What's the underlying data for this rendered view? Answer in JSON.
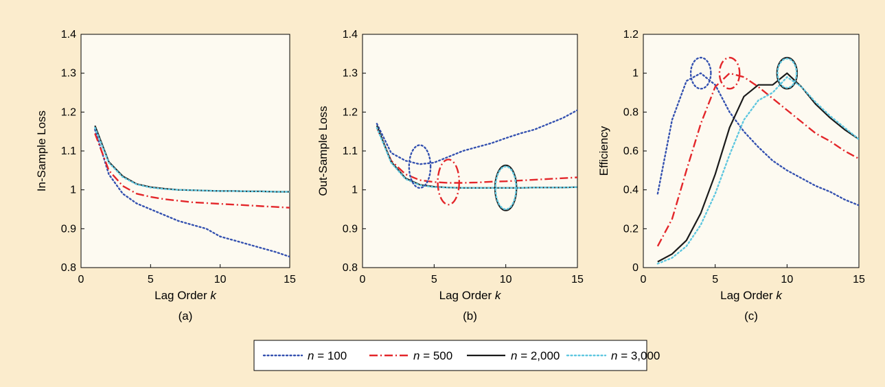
{
  "legend": {
    "placement": "bottom-center",
    "entries": [
      {
        "pre": "n",
        "post": " = 100"
      },
      {
        "pre": "n",
        "post": " = 500"
      },
      {
        "pre": "n",
        "post": " = 2,000"
      },
      {
        "pre": "n",
        "post": " = 3,000"
      }
    ]
  },
  "colors": {
    "background": "#fbeccd",
    "plot_area": "#fdfaf1",
    "n100": "#3451b0",
    "n500": "#e3262a",
    "n2000": "#1a1a1a",
    "n3000": "#5fc7e0"
  },
  "chart_data": [
    {
      "type": "line",
      "panel_label": "(a)",
      "xlabel": "Lag Order",
      "xlabel_var": "k",
      "ylabel": "In-Sample Loss",
      "xlim": [
        0,
        15
      ],
      "ylim": [
        0.8,
        1.4
      ],
      "xticks": [
        0,
        5,
        10,
        15
      ],
      "yticks": [
        0.8,
        0.9,
        1,
        1.1,
        1.2,
        1.3,
        1.4
      ],
      "x": [
        1,
        2,
        3,
        4,
        5,
        6,
        7,
        8,
        9,
        10,
        11,
        12,
        13,
        14,
        15
      ],
      "series": [
        {
          "key": "n100",
          "style": "dotted",
          "values": [
            1.155,
            1.04,
            0.99,
            0.965,
            0.95,
            0.935,
            0.92,
            0.91,
            0.9,
            0.88,
            0.87,
            0.86,
            0.85,
            0.84,
            0.828
          ]
        },
        {
          "key": "n500",
          "style": "dashdot",
          "values": [
            1.145,
            1.05,
            1.01,
            0.99,
            0.982,
            0.976,
            0.972,
            0.968,
            0.966,
            0.964,
            0.962,
            0.96,
            0.958,
            0.956,
            0.954
          ]
        },
        {
          "key": "n2000",
          "style": "solid",
          "values": [
            1.165,
            1.072,
            1.035,
            1.015,
            1.007,
            1.003,
            1.0,
            0.999,
            0.998,
            0.997,
            0.997,
            0.996,
            0.996,
            0.995,
            0.995
          ]
        },
        {
          "key": "n3000",
          "style": "dotted-light",
          "values": [
            1.16,
            1.07,
            1.033,
            1.014,
            1.006,
            1.002,
            1.0,
            0.999,
            0.998,
            0.997,
            0.997,
            0.996,
            0.996,
            0.995,
            0.995
          ]
        }
      ],
      "annotations": []
    },
    {
      "type": "line",
      "panel_label": "(b)",
      "xlabel": "Lag Order",
      "xlabel_var": "k",
      "ylabel": "Out-Sample Loss",
      "xlim": [
        0,
        15
      ],
      "ylim": [
        0.8,
        1.4
      ],
      "xticks": [
        0,
        5,
        10,
        15
      ],
      "yticks": [
        0.8,
        0.9,
        1,
        1.1,
        1.2,
        1.3,
        1.4
      ],
      "x": [
        1,
        2,
        3,
        4,
        5,
        6,
        7,
        8,
        9,
        10,
        11,
        12,
        13,
        14,
        15
      ],
      "series": [
        {
          "key": "n100",
          "style": "dotted",
          "values": [
            1.17,
            1.095,
            1.075,
            1.066,
            1.07,
            1.085,
            1.1,
            1.11,
            1.12,
            1.133,
            1.145,
            1.155,
            1.17,
            1.185,
            1.205
          ]
        },
        {
          "key": "n500",
          "style": "dashdot",
          "values": [
            1.16,
            1.075,
            1.04,
            1.025,
            1.02,
            1.018,
            1.018,
            1.019,
            1.021,
            1.022,
            1.024,
            1.026,
            1.028,
            1.03,
            1.032
          ]
        },
        {
          "key": "n2000",
          "style": "solid",
          "values": [
            1.165,
            1.072,
            1.03,
            1.013,
            1.008,
            1.006,
            1.005,
            1.005,
            1.005,
            1.005,
            1.005,
            1.006,
            1.006,
            1.006,
            1.007
          ]
        },
        {
          "key": "n3000",
          "style": "dotted-light",
          "values": [
            1.16,
            1.07,
            1.028,
            1.012,
            1.007,
            1.006,
            1.005,
            1.005,
            1.005,
            1.005,
            1.005,
            1.006,
            1.006,
            1.006,
            1.007
          ]
        }
      ],
      "annotations": [
        {
          "key": "n100",
          "style": "dotted",
          "cx": 4,
          "cy": 1.06,
          "rx": 0.75,
          "ry": 0.055
        },
        {
          "key": "n500",
          "style": "dashdot",
          "cx": 6,
          "cy": 1.02,
          "rx": 0.75,
          "ry": 0.058
        },
        {
          "key": "n2000",
          "style": "solid",
          "cx": 10,
          "cy": 1.005,
          "rx": 0.75,
          "ry": 0.058
        },
        {
          "key": "n3000",
          "style": "dotted-light",
          "cx": 10,
          "cy": 1.005,
          "rx": 0.72,
          "ry": 0.055
        }
      ]
    },
    {
      "type": "line",
      "panel_label": "(c)",
      "xlabel": "Lag Order",
      "xlabel_var": "k",
      "ylabel": "Efficiency",
      "xlim": [
        0,
        15
      ],
      "ylim": [
        0,
        1.2
      ],
      "xticks": [
        0,
        5,
        10,
        15
      ],
      "yticks": [
        0,
        0.2,
        0.4,
        0.6,
        0.8,
        1,
        1.2
      ],
      "x": [
        1,
        2,
        3,
        4,
        5,
        6,
        7,
        8,
        9,
        10,
        11,
        12,
        13,
        14,
        15
      ],
      "series": [
        {
          "key": "n100",
          "style": "dotted",
          "values": [
            0.38,
            0.76,
            0.96,
            1.0,
            0.94,
            0.8,
            0.7,
            0.62,
            0.55,
            0.5,
            0.46,
            0.42,
            0.39,
            0.35,
            0.32
          ]
        },
        {
          "key": "n500",
          "style": "dashdot",
          "values": [
            0.11,
            0.25,
            0.5,
            0.74,
            0.93,
            1.0,
            0.98,
            0.93,
            0.87,
            0.81,
            0.75,
            0.69,
            0.65,
            0.6,
            0.56
          ]
        },
        {
          "key": "n2000",
          "style": "solid",
          "values": [
            0.03,
            0.07,
            0.14,
            0.28,
            0.48,
            0.72,
            0.88,
            0.94,
            0.94,
            1.0,
            0.93,
            0.84,
            0.77,
            0.71,
            0.66
          ]
        },
        {
          "key": "n3000",
          "style": "dotted-light",
          "values": [
            0.02,
            0.05,
            0.11,
            0.22,
            0.38,
            0.58,
            0.76,
            0.86,
            0.9,
            0.98,
            0.93,
            0.85,
            0.78,
            0.72,
            0.66
          ]
        }
      ],
      "annotations": [
        {
          "key": "n100",
          "style": "dotted",
          "cx": 4,
          "cy": 1.0,
          "rx": 0.7,
          "ry": 0.08
        },
        {
          "key": "n500",
          "style": "dashdot",
          "cx": 6,
          "cy": 1.0,
          "rx": 0.7,
          "ry": 0.08
        },
        {
          "key": "n2000",
          "style": "solid",
          "cx": 10,
          "cy": 1.0,
          "rx": 0.7,
          "ry": 0.08
        },
        {
          "key": "n3000",
          "style": "dotted-light",
          "cx": 10,
          "cy": 1.0,
          "rx": 0.66,
          "ry": 0.075
        }
      ]
    }
  ]
}
